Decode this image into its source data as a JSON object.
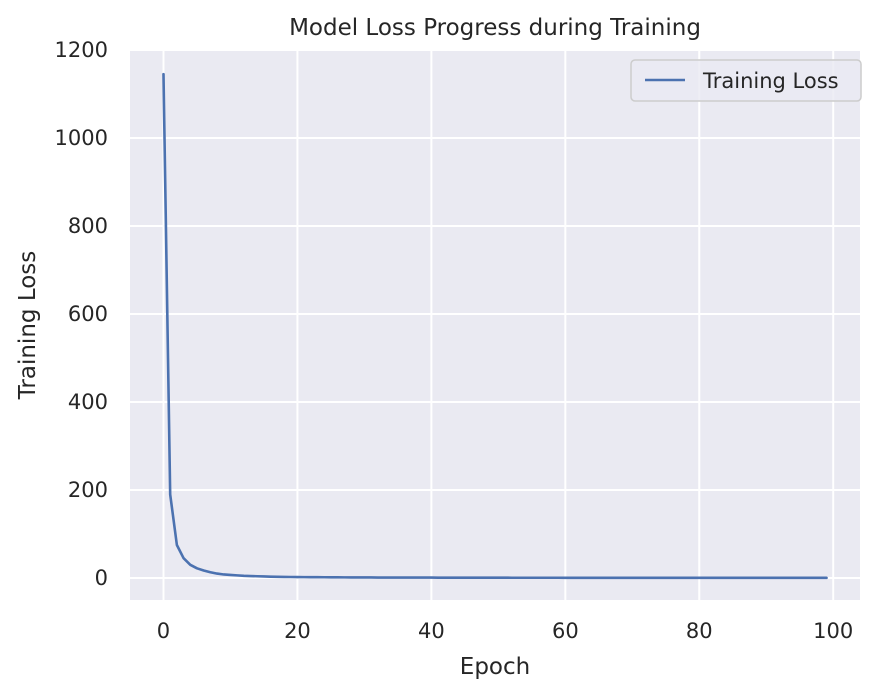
{
  "chart_data": {
    "type": "line",
    "title": "Model Loss Progress during Training",
    "xlabel": "Epoch",
    "ylabel": "Training Loss",
    "xlim": [
      -5,
      104
    ],
    "ylim": [
      -50,
      1200
    ],
    "xticks": [
      0,
      20,
      40,
      60,
      80,
      100
    ],
    "yticks": [
      0,
      200,
      400,
      600,
      800,
      1000,
      1200
    ],
    "grid": true,
    "legend_position": "top-right",
    "colors": {
      "background": "#eaeaf2",
      "grid": "#ffffff",
      "series": "#4c72b0"
    },
    "series": [
      {
        "name": "Training Loss",
        "x": [
          0,
          1,
          2,
          3,
          4,
          5,
          6,
          7,
          8,
          9,
          10,
          11,
          12,
          13,
          14,
          15,
          16,
          17,
          18,
          19,
          20,
          21,
          22,
          23,
          24,
          25,
          26,
          27,
          28,
          29,
          30,
          31,
          32,
          33,
          34,
          35,
          36,
          37,
          38,
          39,
          40,
          41,
          42,
          43,
          44,
          45,
          46,
          47,
          48,
          49,
          50,
          51,
          52,
          53,
          54,
          55,
          56,
          57,
          58,
          59,
          60,
          61,
          62,
          63,
          64,
          65,
          66,
          67,
          68,
          69,
          70,
          71,
          72,
          73,
          74,
          75,
          76,
          77,
          78,
          79,
          80,
          81,
          82,
          83,
          84,
          85,
          86,
          87,
          88,
          89,
          90,
          91,
          92,
          93,
          94,
          95,
          96,
          97,
          98,
          99
        ],
        "values": [
          1145,
          190,
          75,
          45,
          30,
          22,
          17,
          13,
          10,
          8,
          7,
          6,
          5,
          4.5,
          4,
          3.5,
          3,
          2.8,
          2.5,
          2.3,
          2.1,
          2,
          1.9,
          1.8,
          1.7,
          1.6,
          1.5,
          1.4,
          1.3,
          1.3,
          1.2,
          1.2,
          1.1,
          1.1,
          1,
          1,
          1,
          0.9,
          0.9,
          0.9,
          0.9,
          0.8,
          0.8,
          0.8,
          0.8,
          0.8,
          0.7,
          0.7,
          0.7,
          0.7,
          0.7,
          0.7,
          0.6,
          0.6,
          0.6,
          0.6,
          0.6,
          0.6,
          0.6,
          0.6,
          0.5,
          0.5,
          0.5,
          0.5,
          0.5,
          0.5,
          0.5,
          0.5,
          0.5,
          0.5,
          0.5,
          0.5,
          0.5,
          0.5,
          0.5,
          0.4,
          0.4,
          0.4,
          0.4,
          0.4,
          0.4,
          0.4,
          0.4,
          0.4,
          0.4,
          0.4,
          0.4,
          0.4,
          0.4,
          0.4,
          0.4,
          0.4,
          0.4,
          0.4,
          0.4,
          0.4,
          0.4,
          0.4,
          0.4,
          0.4
        ]
      }
    ]
  }
}
